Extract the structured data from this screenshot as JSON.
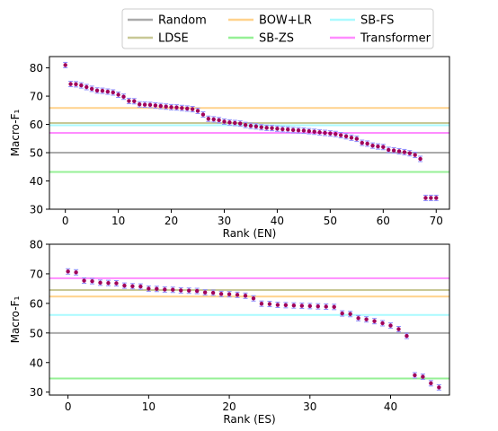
{
  "legend": {
    "entries": [
      {
        "label": "Random",
        "color": "#aaaaaa"
      },
      {
        "label": "LDSE",
        "color": "#c8c896"
      },
      {
        "label": "BOW+LR",
        "color": "#ffd28c"
      },
      {
        "label": "SB-ZS",
        "color": "#96f096"
      },
      {
        "label": "SB-FS",
        "color": "#aafaff"
      },
      {
        "label": "Transformer",
        "color": "#ff8cff"
      }
    ]
  },
  "chart_data": [
    {
      "type": "scatter",
      "xlabel": "Rank (EN)",
      "ylabel": "Macro-F₁",
      "xlim": [
        -3,
        72.5
      ],
      "ylim": [
        30,
        84
      ],
      "xticks": [
        0,
        10,
        20,
        30,
        40,
        50,
        60,
        70
      ],
      "yticks": [
        30,
        40,
        50,
        60,
        70,
        80
      ],
      "marker_color": "#a0005a",
      "errorbar_color": "#8c8cff",
      "baselines": [
        {
          "name": "Random",
          "value": 50.0
        },
        {
          "name": "LDSE",
          "value": 60.5
        },
        {
          "name": "BOW+LR",
          "value": 65.8
        },
        {
          "name": "SB-ZS",
          "value": 43.2
        },
        {
          "name": "SB-FS",
          "value": 59.7
        },
        {
          "name": "Transformer",
          "value": 57.0
        }
      ],
      "points": [
        {
          "x": 0,
          "y": 81.0
        },
        {
          "x": 1,
          "y": 74.3
        },
        {
          "x": 2,
          "y": 74.2
        },
        {
          "x": 3,
          "y": 73.8
        },
        {
          "x": 4,
          "y": 73.2
        },
        {
          "x": 5,
          "y": 72.6
        },
        {
          "x": 6,
          "y": 72.0
        },
        {
          "x": 7,
          "y": 71.9
        },
        {
          "x": 8,
          "y": 71.6
        },
        {
          "x": 9,
          "y": 71.3
        },
        {
          "x": 10,
          "y": 70.5
        },
        {
          "x": 11,
          "y": 69.8
        },
        {
          "x": 12,
          "y": 68.3
        },
        {
          "x": 13,
          "y": 68.2
        },
        {
          "x": 14,
          "y": 67.1
        },
        {
          "x": 15,
          "y": 67.0
        },
        {
          "x": 16,
          "y": 66.9
        },
        {
          "x": 17,
          "y": 66.7
        },
        {
          "x": 18,
          "y": 66.5
        },
        {
          "x": 19,
          "y": 66.3
        },
        {
          "x": 20,
          "y": 66.1
        },
        {
          "x": 21,
          "y": 66.0
        },
        {
          "x": 22,
          "y": 65.8
        },
        {
          "x": 23,
          "y": 65.6
        },
        {
          "x": 24,
          "y": 65.4
        },
        {
          "x": 25,
          "y": 64.8
        },
        {
          "x": 26,
          "y": 63.5
        },
        {
          "x": 27,
          "y": 62.0
        },
        {
          "x": 28,
          "y": 61.8
        },
        {
          "x": 29,
          "y": 61.5
        },
        {
          "x": 30,
          "y": 61.0
        },
        {
          "x": 31,
          "y": 60.7
        },
        {
          "x": 32,
          "y": 60.5
        },
        {
          "x": 33,
          "y": 60.3
        },
        {
          "x": 34,
          "y": 59.8
        },
        {
          "x": 35,
          "y": 59.5
        },
        {
          "x": 36,
          "y": 59.3
        },
        {
          "x": 37,
          "y": 59.0
        },
        {
          "x": 38,
          "y": 58.8
        },
        {
          "x": 39,
          "y": 58.7
        },
        {
          "x": 40,
          "y": 58.5
        },
        {
          "x": 41,
          "y": 58.3
        },
        {
          "x": 42,
          "y": 58.2
        },
        {
          "x": 43,
          "y": 58.0
        },
        {
          "x": 44,
          "y": 57.9
        },
        {
          "x": 45,
          "y": 57.8
        },
        {
          "x": 46,
          "y": 57.6
        },
        {
          "x": 47,
          "y": 57.4
        },
        {
          "x": 48,
          "y": 57.2
        },
        {
          "x": 49,
          "y": 57.0
        },
        {
          "x": 50,
          "y": 56.8
        },
        {
          "x": 51,
          "y": 56.6
        },
        {
          "x": 52,
          "y": 56.2
        },
        {
          "x": 53,
          "y": 55.8
        },
        {
          "x": 54,
          "y": 55.3
        },
        {
          "x": 55,
          "y": 54.9
        },
        {
          "x": 56,
          "y": 53.5
        },
        {
          "x": 57,
          "y": 53.2
        },
        {
          "x": 58,
          "y": 52.5
        },
        {
          "x": 59,
          "y": 52.2
        },
        {
          "x": 60,
          "y": 52.0
        },
        {
          "x": 61,
          "y": 51.0
        },
        {
          "x": 62,
          "y": 50.8
        },
        {
          "x": 63,
          "y": 50.5
        },
        {
          "x": 64,
          "y": 50.2
        },
        {
          "x": 65,
          "y": 49.8
        },
        {
          "x": 66,
          "y": 49.2
        },
        {
          "x": 67,
          "y": 47.8
        },
        {
          "x": 68,
          "y": 34.0
        },
        {
          "x": 69,
          "y": 34.0
        },
        {
          "x": 70,
          "y": 34.0
        }
      ]
    },
    {
      "type": "scatter",
      "xlabel": "Rank (ES)",
      "ylabel": "Macro-F₁",
      "xlim": [
        -2.3,
        47.3
      ],
      "ylim": [
        29,
        80
      ],
      "xticks": [
        0,
        10,
        20,
        30,
        40
      ],
      "yticks": [
        30,
        40,
        50,
        60,
        70,
        80
      ],
      "marker_color": "#a0005a",
      "errorbar_color": "#8c8cff",
      "baselines": [
        {
          "name": "Random",
          "value": 50.0
        },
        {
          "name": "LDSE",
          "value": 64.5
        },
        {
          "name": "BOW+LR",
          "value": 62.3
        },
        {
          "name": "SB-ZS",
          "value": 34.6
        },
        {
          "name": "SB-FS",
          "value": 56.1
        },
        {
          "name": "Transformer",
          "value": 68.5
        }
      ],
      "points": [
        {
          "x": 0,
          "y": 70.8
        },
        {
          "x": 1,
          "y": 70.5
        },
        {
          "x": 2,
          "y": 67.7
        },
        {
          "x": 3,
          "y": 67.5
        },
        {
          "x": 4,
          "y": 67.0
        },
        {
          "x": 5,
          "y": 66.9
        },
        {
          "x": 6,
          "y": 66.8
        },
        {
          "x": 7,
          "y": 66.0
        },
        {
          "x": 8,
          "y": 65.8
        },
        {
          "x": 9,
          "y": 65.7
        },
        {
          "x": 10,
          "y": 65.0
        },
        {
          "x": 11,
          "y": 64.9
        },
        {
          "x": 12,
          "y": 64.7
        },
        {
          "x": 13,
          "y": 64.6
        },
        {
          "x": 14,
          "y": 64.4
        },
        {
          "x": 15,
          "y": 64.3
        },
        {
          "x": 16,
          "y": 64.2
        },
        {
          "x": 17,
          "y": 63.7
        },
        {
          "x": 18,
          "y": 63.6
        },
        {
          "x": 19,
          "y": 63.2
        },
        {
          "x": 20,
          "y": 63.1
        },
        {
          "x": 21,
          "y": 62.9
        },
        {
          "x": 22,
          "y": 62.6
        },
        {
          "x": 23,
          "y": 61.7
        },
        {
          "x": 24,
          "y": 59.9
        },
        {
          "x": 25,
          "y": 59.8
        },
        {
          "x": 26,
          "y": 59.5
        },
        {
          "x": 27,
          "y": 59.4
        },
        {
          "x": 28,
          "y": 59.3
        },
        {
          "x": 29,
          "y": 59.2
        },
        {
          "x": 30,
          "y": 59.1
        },
        {
          "x": 31,
          "y": 59.0
        },
        {
          "x": 32,
          "y": 58.9
        },
        {
          "x": 33,
          "y": 58.8
        },
        {
          "x": 34,
          "y": 56.6
        },
        {
          "x": 35,
          "y": 56.4
        },
        {
          "x": 36,
          "y": 55.0
        },
        {
          "x": 37,
          "y": 54.6
        },
        {
          "x": 38,
          "y": 54.0
        },
        {
          "x": 39,
          "y": 53.3
        },
        {
          "x": 40,
          "y": 52.5
        },
        {
          "x": 41,
          "y": 51.3
        },
        {
          "x": 42,
          "y": 49.0
        },
        {
          "x": 43,
          "y": 35.7
        },
        {
          "x": 44,
          "y": 35.2
        },
        {
          "x": 45,
          "y": 33.0
        },
        {
          "x": 46,
          "y": 31.6
        }
      ]
    }
  ]
}
